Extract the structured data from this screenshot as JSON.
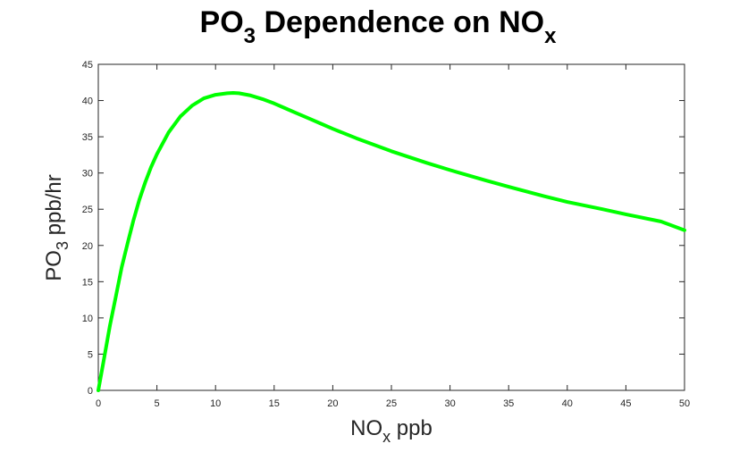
{
  "chart_data": {
    "type": "line",
    "title_main": "PO",
    "title_sub": "3",
    "title_rest": " Dependence on NO",
    "title_sub2": "x",
    "xlabel_main": "NO",
    "xlabel_sub": "x",
    "xlabel_rest": " ppb",
    "ylabel_main": "PO",
    "ylabel_sub": "3",
    "ylabel_rest": " ppb/hr",
    "xlim": [
      0,
      50
    ],
    "ylim": [
      0,
      45
    ],
    "xticks": [
      0,
      5,
      10,
      15,
      20,
      25,
      30,
      35,
      40,
      45,
      50
    ],
    "yticks": [
      0,
      5,
      10,
      15,
      20,
      25,
      30,
      35,
      40,
      45
    ],
    "grid": false,
    "series": [
      {
        "color": "#00ff00",
        "x": [
          0,
          0.5,
          1,
          1.5,
          2,
          2.5,
          3,
          3.5,
          4,
          4.5,
          5,
          6,
          7,
          8,
          9,
          10,
          11,
          11.5,
          12,
          13,
          14,
          15,
          16,
          17,
          18,
          19,
          20,
          22,
          25,
          28,
          30,
          33,
          35,
          38,
          40,
          43,
          45,
          48,
          50
        ],
        "y": [
          0,
          4.5,
          9,
          13,
          17,
          20.3,
          23.5,
          26.3,
          28.7,
          30.8,
          32.6,
          35.6,
          37.8,
          39.3,
          40.3,
          40.8,
          41.0,
          41.05,
          41.0,
          40.7,
          40.2,
          39.6,
          38.9,
          38.2,
          37.5,
          36.8,
          36.1,
          34.8,
          33.0,
          31.4,
          30.4,
          29.0,
          28.1,
          26.8,
          26.0,
          25.0,
          24.3,
          23.3,
          22.1
        ]
      }
    ]
  }
}
